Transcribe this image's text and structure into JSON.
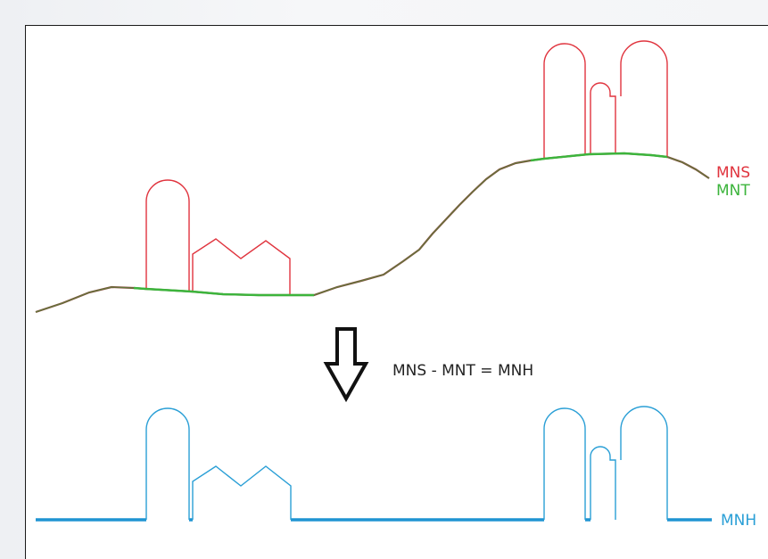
{
  "labels": {
    "mns": "MNS",
    "mnt": "MNT",
    "mnh": "MNH",
    "equation": "MNS - MNT = MNH"
  },
  "colors": {
    "mns": "#e0343e",
    "mnt": "#3cb43c",
    "mnh": "#2a9fd6",
    "arrow": "#111111",
    "frame": "#1a1a1a"
  },
  "icons": {
    "arrow": "down-arrow-icon"
  }
}
